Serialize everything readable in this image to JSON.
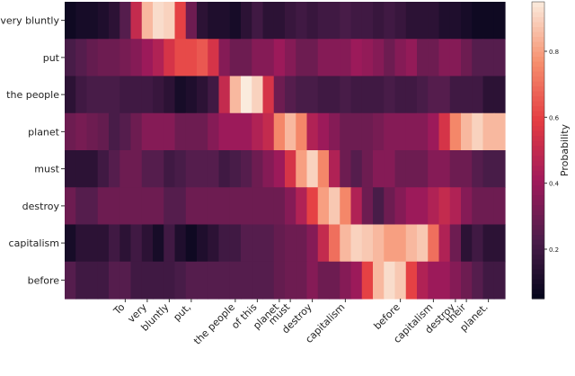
{
  "chart_data": {
    "type": "heatmap",
    "rows": [
      "very bluntly",
      "put",
      "the people",
      "planet",
      "must",
      "destroy",
      "capitalism",
      "before"
    ],
    "categories": [
      null,
      null,
      null,
      null,
      null,
      "To",
      null,
      "very",
      null,
      "bluntly",
      null,
      "put,",
      null,
      null,
      null,
      "the people",
      null,
      "of this",
      null,
      "planet",
      "must",
      null,
      "destroy",
      null,
      null,
      "capitalism",
      null,
      null,
      null,
      null,
      "before",
      null,
      null,
      "capitalism",
      null,
      "destroy",
      "their",
      null,
      "planet.",
      null
    ],
    "values": [
      [
        0.08,
        0.1,
        0.1,
        0.12,
        0.15,
        0.25,
        0.5,
        0.85,
        0.92,
        0.9,
        0.6,
        0.3,
        0.15,
        0.12,
        0.12,
        0.1,
        0.15,
        0.2,
        0.15,
        0.15,
        0.18,
        0.2,
        0.18,
        0.2,
        0.2,
        0.22,
        0.2,
        0.2,
        0.18,
        0.2,
        0.18,
        0.15,
        0.15,
        0.15,
        0.12,
        0.12,
        0.1,
        0.08,
        0.08,
        0.08
      ],
      [
        0.22,
        0.25,
        0.28,
        0.3,
        0.3,
        0.32,
        0.35,
        0.4,
        0.45,
        0.55,
        0.62,
        0.62,
        0.65,
        0.55,
        0.35,
        0.3,
        0.3,
        0.35,
        0.35,
        0.4,
        0.35,
        0.3,
        0.3,
        0.35,
        0.35,
        0.35,
        0.4,
        0.38,
        0.35,
        0.3,
        0.35,
        0.38,
        0.3,
        0.3,
        0.35,
        0.35,
        0.3,
        0.25,
        0.25,
        0.25
      ],
      [
        0.15,
        0.2,
        0.22,
        0.22,
        0.22,
        0.2,
        0.2,
        0.2,
        0.18,
        0.15,
        0.1,
        0.12,
        0.15,
        0.2,
        0.5,
        0.85,
        0.95,
        0.9,
        0.55,
        0.3,
        0.25,
        0.22,
        0.22,
        0.2,
        0.2,
        0.22,
        0.2,
        0.2,
        0.2,
        0.22,
        0.2,
        0.2,
        0.22,
        0.25,
        0.25,
        0.2,
        0.2,
        0.2,
        0.15,
        0.15
      ],
      [
        0.3,
        0.32,
        0.3,
        0.28,
        0.22,
        0.25,
        0.3,
        0.35,
        0.35,
        0.35,
        0.3,
        0.3,
        0.3,
        0.35,
        0.4,
        0.4,
        0.4,
        0.45,
        0.5,
        0.75,
        0.85,
        0.75,
        0.45,
        0.4,
        0.35,
        0.3,
        0.3,
        0.3,
        0.32,
        0.35,
        0.35,
        0.35,
        0.35,
        0.4,
        0.55,
        0.75,
        0.85,
        0.9,
        0.85,
        0.85
      ],
      [
        0.15,
        0.15,
        0.15,
        0.2,
        0.25,
        0.3,
        0.3,
        0.25,
        0.25,
        0.2,
        0.22,
        0.25,
        0.25,
        0.25,
        0.2,
        0.22,
        0.25,
        0.3,
        0.35,
        0.4,
        0.55,
        0.8,
        0.9,
        0.75,
        0.45,
        0.3,
        0.25,
        0.3,
        0.35,
        0.35,
        0.3,
        0.3,
        0.3,
        0.35,
        0.35,
        0.3,
        0.3,
        0.25,
        0.22,
        0.22
      ],
      [
        0.3,
        0.25,
        0.25,
        0.3,
        0.3,
        0.3,
        0.3,
        0.3,
        0.3,
        0.25,
        0.25,
        0.3,
        0.3,
        0.3,
        0.3,
        0.3,
        0.3,
        0.3,
        0.3,
        0.3,
        0.35,
        0.45,
        0.6,
        0.8,
        0.88,
        0.75,
        0.45,
        0.3,
        0.22,
        0.3,
        0.35,
        0.4,
        0.4,
        0.45,
        0.5,
        0.45,
        0.35,
        0.3,
        0.3,
        0.3
      ],
      [
        0.1,
        0.15,
        0.15,
        0.15,
        0.2,
        0.15,
        0.2,
        0.15,
        0.1,
        0.2,
        0.12,
        0.08,
        0.12,
        0.15,
        0.2,
        0.2,
        0.25,
        0.25,
        0.25,
        0.28,
        0.3,
        0.3,
        0.35,
        0.5,
        0.7,
        0.85,
        0.9,
        0.88,
        0.85,
        0.8,
        0.8,
        0.85,
        0.88,
        0.7,
        0.45,
        0.3,
        0.15,
        0.2,
        0.15,
        0.15
      ],
      [
        0.25,
        0.2,
        0.2,
        0.2,
        0.25,
        0.25,
        0.2,
        0.2,
        0.2,
        0.2,
        0.22,
        0.25,
        0.25,
        0.25,
        0.25,
        0.25,
        0.25,
        0.25,
        0.25,
        0.28,
        0.3,
        0.3,
        0.35,
        0.3,
        0.3,
        0.35,
        0.4,
        0.6,
        0.85,
        0.92,
        0.88,
        0.6,
        0.45,
        0.4,
        0.4,
        0.35,
        0.3,
        0.25,
        0.2,
        0.2
      ]
    ],
    "colormap": "rocket",
    "colorbar_label": "Probability",
    "zlim": [
      0.05,
      0.95
    ],
    "zticks": [
      0.2,
      0.4,
      0.6,
      0.8
    ]
  }
}
